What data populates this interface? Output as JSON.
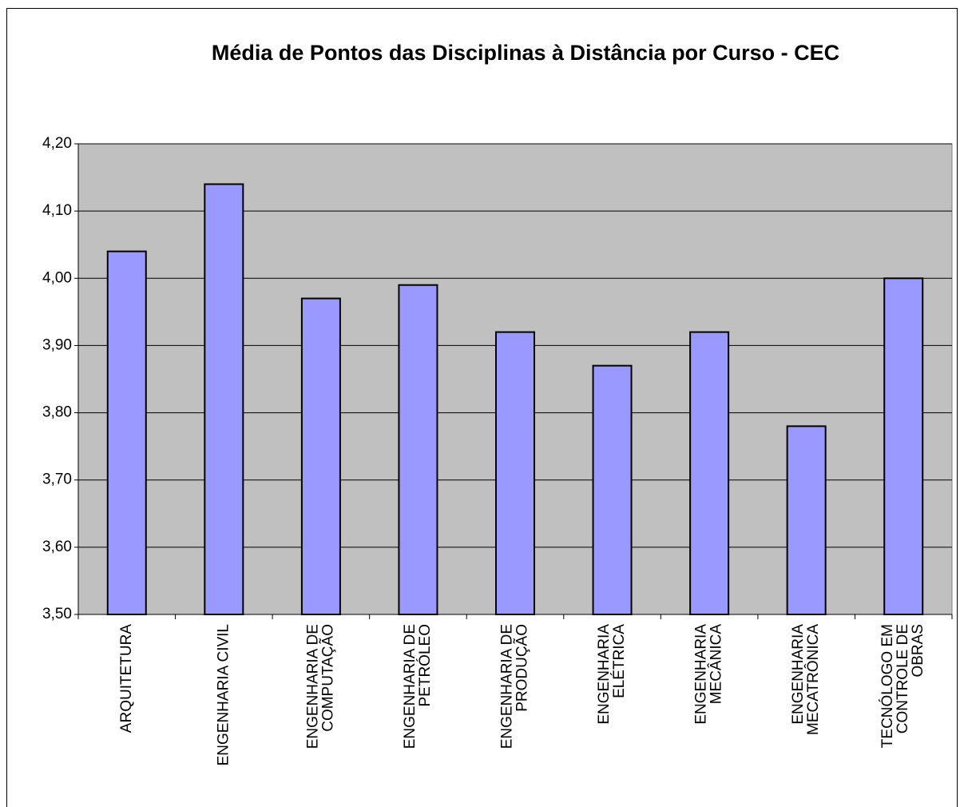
{
  "chart_data": {
    "type": "bar",
    "title": "Média de Pontos das Disciplinas à Distância por Curso - CEC",
    "categories": [
      [
        "ARQUITETURA"
      ],
      [
        "ENGENHARIA CIVIL"
      ],
      [
        "ENGENHARIA DE",
        "COMPUTAÇÃO"
      ],
      [
        "ENGENHARIA DE",
        "PETRÓLEO"
      ],
      [
        "ENGENHARIA DE",
        "PRODUÇÃO"
      ],
      [
        "ENGENHARIA",
        "ELÉTRICA"
      ],
      [
        "ENGENHARIA",
        "MECÂNICA"
      ],
      [
        "ENGENHARIA",
        "MECATRÔNICA"
      ],
      [
        "TECNÓLOGO EM",
        "CONTROLE DE",
        "OBRAS"
      ]
    ],
    "values": [
      4.04,
      4.14,
      3.97,
      3.99,
      3.92,
      3.87,
      3.92,
      3.78,
      4.0
    ],
    "color": "#9999ff",
    "plot_background": "#c0c0c0",
    "ylim": [
      3.5,
      4.2
    ],
    "yticks": [
      {
        "value": 3.5,
        "label": "3,50"
      },
      {
        "value": 3.6,
        "label": "3,60"
      },
      {
        "value": 3.7,
        "label": "3,70"
      },
      {
        "value": 3.8,
        "label": "3,80"
      },
      {
        "value": 3.9,
        "label": "3,90"
      },
      {
        "value": 4.0,
        "label": "4,00"
      },
      {
        "value": 4.1,
        "label": "4,10"
      },
      {
        "value": 4.2,
        "label": "4,20"
      }
    ],
    "grid": true
  }
}
